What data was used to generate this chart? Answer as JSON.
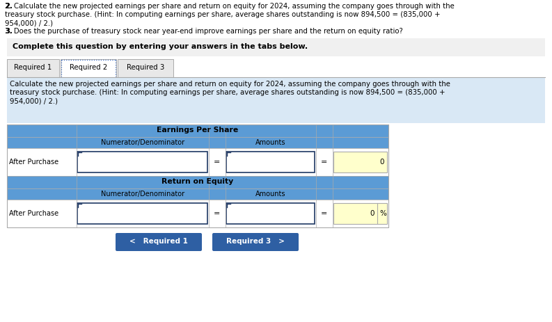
{
  "intro_line1": "2. Calculate the new projected earnings per share and return on equity for 2024, assuming the company goes through with the",
  "intro_line2": "treasury stock purchase. (Hint: In computing earnings per share, average shares outstanding is now 894,500 = (835,000 +",
  "intro_line3": "954,000) / 2.)",
  "intro_line4": "3. Does the purchase of treasury stock near year-end improve earnings per share and the return on equity ratio?",
  "complete_text": "Complete this question by entering your answers in the tabs below.",
  "tab1": "Required 1",
  "tab2": "Required 2",
  "tab3": "Required 3",
  "body_line1": "Calculate the new projected earnings per share and return on equity for 2024, assuming the company goes through with the",
  "body_line2": "treasury stock purchase. (Hint: In computing earnings per share, average shares outstanding is now 894,500 = (835,000 +",
  "body_line3": "954,000) / 2.)",
  "section1_header": "Earnings Per Share",
  "section2_header": "Return on Equity",
  "col_header1": "Numerator/Denominator",
  "col_header2": "Amounts",
  "row_label": "After Purchase",
  "eps_value": "0",
  "roe_value": "0",
  "roe_suffix": "%",
  "btn1_text": "<   Required 1",
  "btn2_text": "Required 3   >",
  "white": "#ffffff",
  "light_grey": "#e8e8e8",
  "mid_grey": "#d0d0d0",
  "dark_grey": "#aaaaaa",
  "bg_grey": "#f0f0f0",
  "blue_header": "#5b9bd5",
  "light_blue_bg": "#d9e8f5",
  "yellow": "#ffffcc",
  "button_blue": "#2e5fa3",
  "dark_blue": "#1f3864",
  "tab_dashed": "#4472c4",
  "black": "#000000"
}
